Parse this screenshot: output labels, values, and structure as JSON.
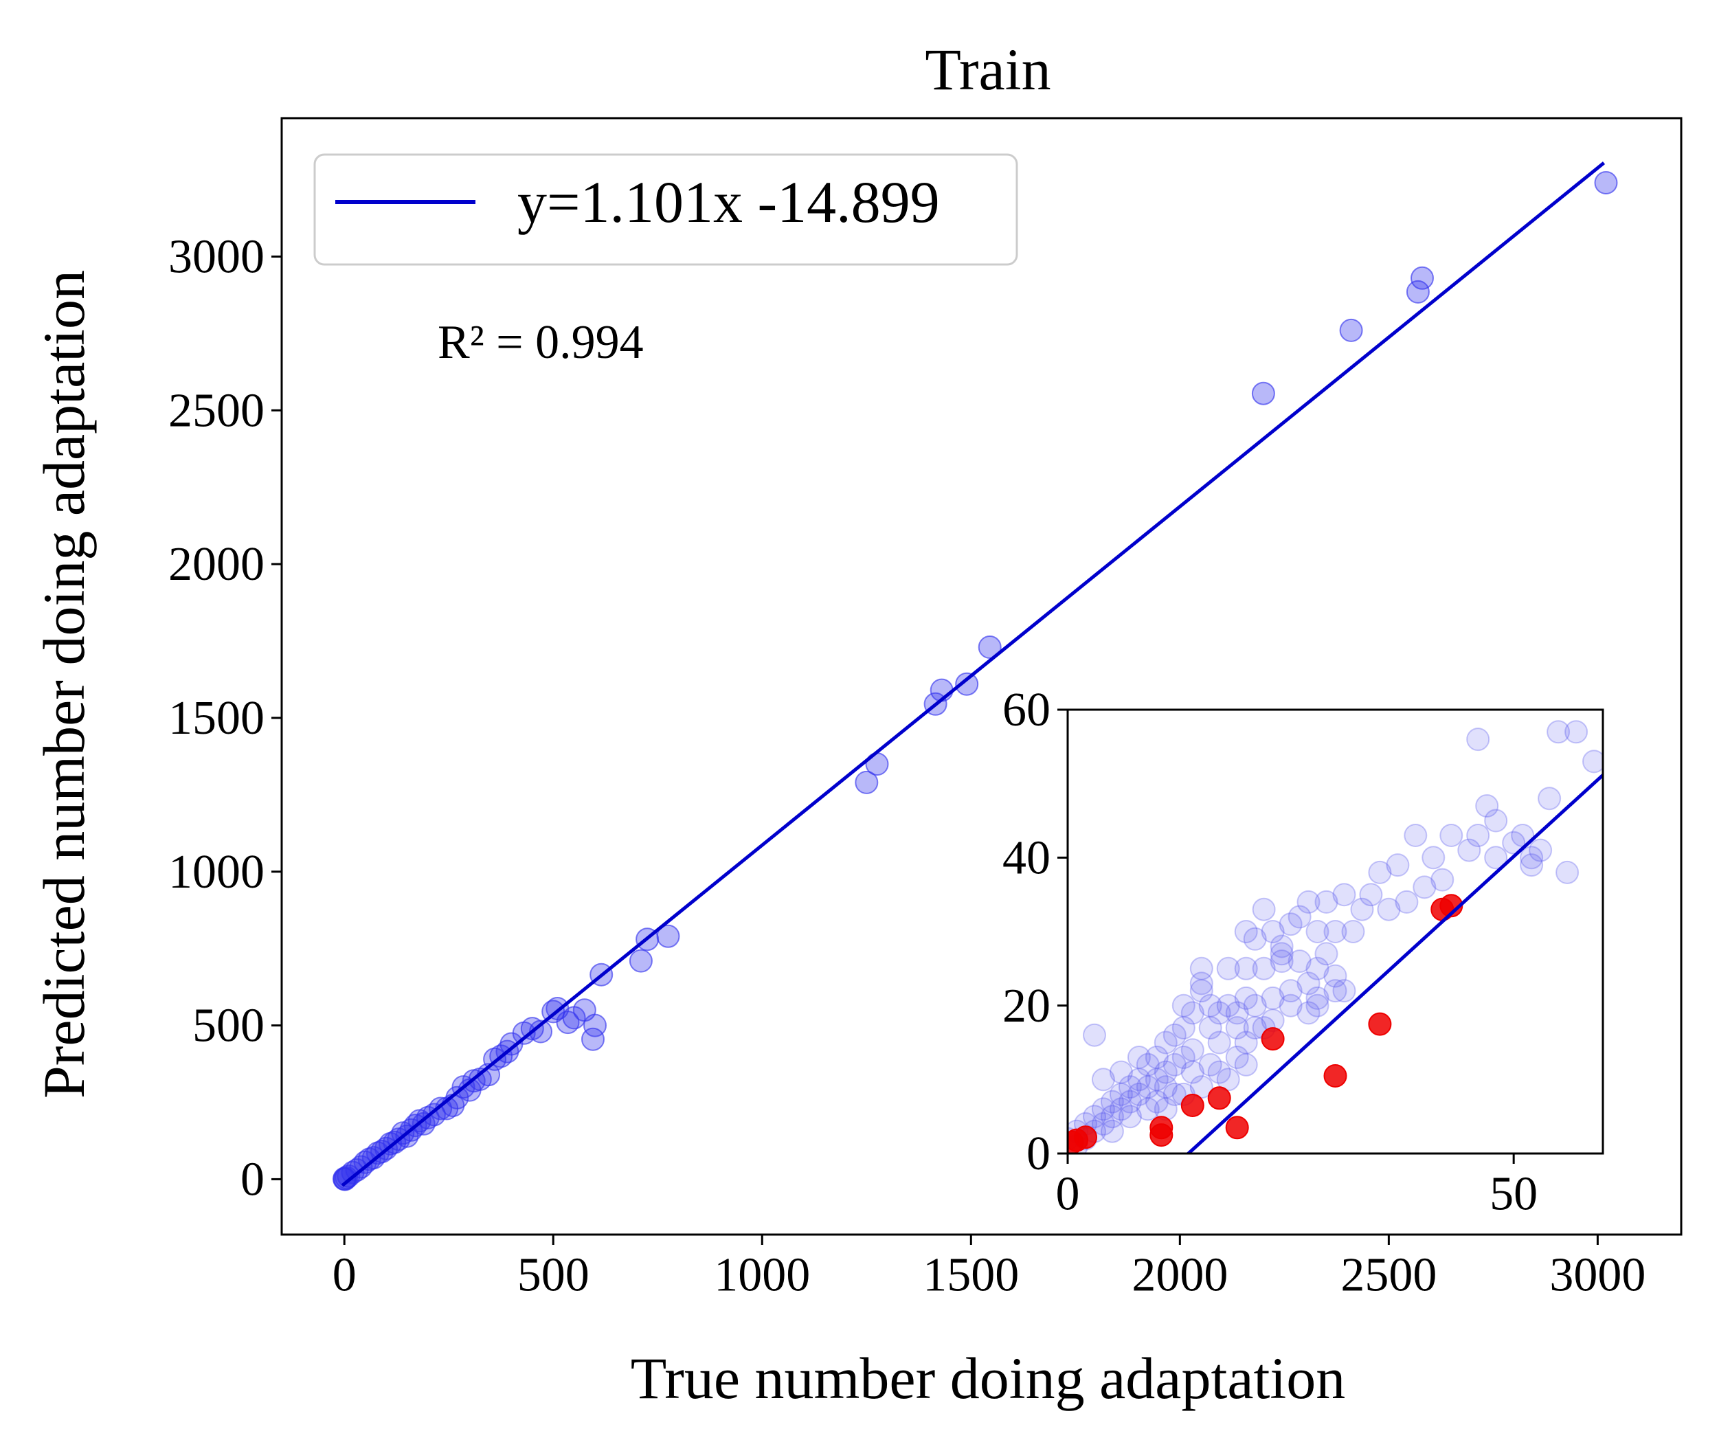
{
  "chart_data": [
    {
      "type": "scatter",
      "title": "Train",
      "xlabel": "True number doing adaptation",
      "ylabel": "Predicted number doing adaptation",
      "xlim": [
        -150,
        3200
      ],
      "ylim": [
        -180,
        3450
      ],
      "xticks": [
        0,
        500,
        1000,
        1500,
        2000,
        2500,
        3000
      ],
      "yticks": [
        0,
        500,
        1000,
        1500,
        2000,
        2500,
        3000
      ],
      "grid": false,
      "legend_position": "upper-left",
      "annotation": "R² = 0.994",
      "fit_line": {
        "label": "y=1.101x -14.899",
        "slope": 1.101,
        "intercept": -14.899,
        "x_range": [
          -5,
          3015
        ],
        "color": "#0000CC"
      },
      "series": [
        {
          "color": "#3333EE",
          "alpha": 0.35,
          "points": [
            [
              3020,
              3240
            ],
            [
              2580,
              2930
            ],
            [
              2570,
              2885
            ],
            [
              2410,
              2760
            ],
            [
              2200,
              2555
            ],
            [
              1545,
              1730
            ],
            [
              1490,
              1610
            ],
            [
              1430,
              1590
            ],
            [
              1415,
              1545
            ],
            [
              1275,
              1350
            ],
            [
              1250,
              1290
            ],
            [
              775,
              790
            ],
            [
              725,
              780
            ],
            [
              710,
              710
            ],
            [
              615,
              665
            ],
            [
              600,
              500
            ],
            [
              595,
              455
            ],
            [
              575,
              550
            ],
            [
              550,
              525
            ],
            [
              535,
              510
            ],
            [
              510,
              555
            ],
            [
              500,
              545
            ],
            [
              470,
              480
            ],
            [
              450,
              490
            ],
            [
              430,
              475
            ],
            [
              400,
              440
            ],
            [
              390,
              415
            ],
            [
              375,
              400
            ],
            [
              360,
              390
            ],
            [
              345,
              340
            ],
            [
              325,
              325
            ],
            [
              310,
              320
            ],
            [
              300,
              290
            ],
            [
              285,
              300
            ],
            [
              270,
              265
            ],
            [
              260,
              240
            ],
            [
              245,
              230
            ],
            [
              230,
              230
            ],
            [
              215,
              210
            ],
            [
              200,
              200
            ],
            [
              190,
              180
            ],
            [
              180,
              190
            ],
            [
              170,
              175
            ],
            [
              160,
              160
            ],
            [
              150,
              140
            ],
            [
              140,
              150
            ],
            [
              130,
              130
            ],
            [
              120,
              120
            ],
            [
              110,
              115
            ],
            [
              100,
              100
            ],
            [
              90,
              90
            ],
            [
              80,
              85
            ],
            [
              70,
              70
            ],
            [
              60,
              65
            ],
            [
              50,
              55
            ],
            [
              40,
              40
            ],
            [
              30,
              30
            ],
            [
              20,
              22
            ],
            [
              10,
              10
            ],
            [
              5,
              5
            ],
            [
              0,
              0
            ],
            [
              0,
              2
            ],
            [
              2,
              0
            ]
          ]
        }
      ]
    },
    {
      "type": "scatter",
      "title": "",
      "xlim": [
        0,
        60
      ],
      "ylim": [
        0,
        60
      ],
      "xticks": [
        0,
        50
      ],
      "yticks": [
        0,
        20,
        40,
        60
      ],
      "grid": false,
      "fit_line": {
        "slope": 1.101,
        "intercept": -14.899,
        "x_range": [
          13.5,
          60
        ],
        "color": "#0000CC"
      },
      "series": [
        {
          "color": "#5555EE",
          "alpha": 0.18,
          "points": [
            [
              57,
              57
            ],
            [
              55,
              57
            ],
            [
              59,
              53
            ],
            [
              46,
              56
            ],
            [
              54,
              48
            ],
            [
              47,
              47
            ],
            [
              48,
              45
            ],
            [
              51,
              43
            ],
            [
              46,
              43
            ],
            [
              53,
              41
            ],
            [
              50,
              42
            ],
            [
              52,
              40
            ],
            [
              48,
              40
            ],
            [
              56,
              38
            ],
            [
              52,
              39
            ],
            [
              45,
              41
            ],
            [
              43,
              43
            ],
            [
              39,
              43
            ],
            [
              41,
              40
            ],
            [
              42,
              37
            ],
            [
              40,
              36
            ],
            [
              37,
              39
            ],
            [
              35,
              38
            ],
            [
              38,
              34
            ],
            [
              36,
              33
            ],
            [
              34,
              35
            ],
            [
              33,
              33
            ],
            [
              31,
              35
            ],
            [
              29,
              34
            ],
            [
              27,
              34
            ],
            [
              26,
              32
            ],
            [
              30,
              30
            ],
            [
              32,
              30
            ],
            [
              28,
              30
            ],
            [
              25,
              31
            ],
            [
              22,
              33
            ],
            [
              23,
              30
            ],
            [
              24,
              28
            ],
            [
              21,
              29
            ],
            [
              20,
              30
            ],
            [
              29,
              27
            ],
            [
              26,
              26
            ],
            [
              24,
              26
            ],
            [
              22,
              25
            ],
            [
              20,
              25
            ],
            [
              18,
              25
            ],
            [
              15,
              25
            ],
            [
              15,
              23
            ],
            [
              28,
              25
            ],
            [
              30,
              22
            ],
            [
              25,
              22
            ],
            [
              23,
              21
            ],
            [
              21,
              20
            ],
            [
              20,
              21
            ],
            [
              19,
              19
            ],
            [
              18,
              20
            ],
            [
              17,
              19
            ],
            [
              16,
              20
            ],
            [
              15,
              22
            ],
            [
              14,
              19
            ],
            [
              13,
              20
            ],
            [
              13,
              17
            ],
            [
              12,
              16
            ],
            [
              11,
              15
            ],
            [
              17,
              15
            ],
            [
              20,
              15
            ],
            [
              16,
              17
            ],
            [
              22,
              17
            ],
            [
              19,
              17
            ],
            [
              25,
              20
            ],
            [
              27,
              19
            ],
            [
              23,
              18
            ],
            [
              21,
              17
            ],
            [
              14,
              14
            ],
            [
              13,
              13
            ],
            [
              12,
              12
            ],
            [
              11,
              11
            ],
            [
              10,
              10
            ],
            [
              10,
              13
            ],
            [
              9,
              12
            ],
            [
              8,
              10
            ],
            [
              7,
              9
            ],
            [
              6,
              8
            ],
            [
              5,
              7
            ],
            [
              4,
              6
            ],
            [
              3,
              5
            ],
            [
              2,
              4
            ],
            [
              1,
              3
            ],
            [
              0,
              2
            ],
            [
              1,
              1
            ],
            [
              3,
              3
            ],
            [
              4,
              4
            ],
            [
              5,
              5
            ],
            [
              6,
              6
            ],
            [
              7,
              7
            ],
            [
              8,
              8
            ],
            [
              9,
              9
            ],
            [
              11,
              9
            ],
            [
              12,
              8
            ],
            [
              14,
              11
            ],
            [
              15,
              9
            ],
            [
              8,
              13
            ],
            [
              6,
              11
            ],
            [
              4,
              10
            ],
            [
              3,
              16
            ],
            [
              10,
              7
            ],
            [
              7,
              5
            ],
            [
              5,
              3
            ],
            [
              2,
              2
            ],
            [
              9,
              6
            ],
            [
              11,
              6
            ],
            [
              13,
              8
            ],
            [
              16,
              12
            ],
            [
              18,
              10
            ],
            [
              19,
              13
            ],
            [
              20,
              12
            ],
            [
              17,
              11
            ],
            [
              28,
              21
            ],
            [
              27,
              23
            ],
            [
              30,
              24
            ],
            [
              31,
              22
            ],
            [
              24,
              27
            ],
            [
              28,
              20
            ]
          ]
        },
        {
          "color": "#EE0000",
          "alpha": 0.85,
          "points": [
            [
              43,
              33.5
            ],
            [
              42,
              33
            ],
            [
              35,
              17.5
            ],
            [
              30,
              10.5
            ],
            [
              23,
              15.5
            ],
            [
              19,
              3.5
            ],
            [
              17,
              7.5
            ],
            [
              14,
              6.5
            ],
            [
              10.5,
              3.5
            ],
            [
              10.5,
              2.5
            ],
            [
              2,
              2.2
            ],
            [
              1,
              1.8
            ],
            [
              0.5,
              1.5
            ]
          ]
        }
      ]
    }
  ]
}
